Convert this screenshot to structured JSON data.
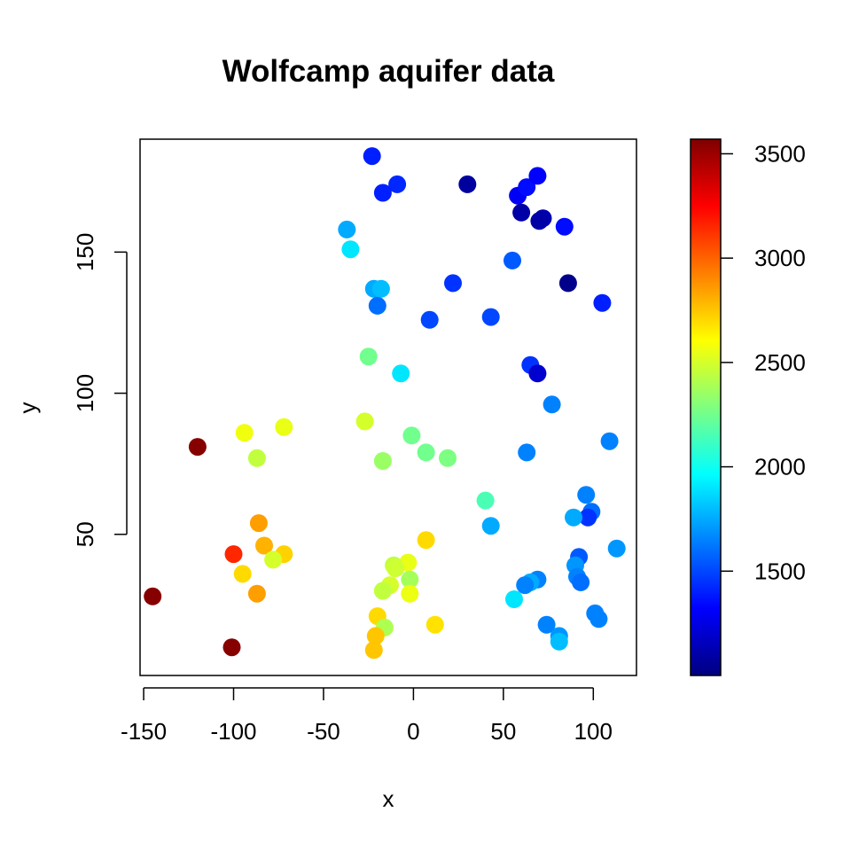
{
  "chart_data": {
    "type": "scatter",
    "title": "Wolfcamp aquifer data",
    "xlabel": "x",
    "ylabel": "y",
    "xlim": [
      -152,
      124
    ],
    "ylim": [
      0,
      190
    ],
    "xticks": [
      -150,
      -100,
      -50,
      0,
      50,
      100
    ],
    "xtick_labels": [
      "-150",
      "-100",
      "-50",
      "0",
      "50",
      "100"
    ],
    "yticks": [
      50,
      100,
      150
    ],
    "ytick_labels": [
      "50",
      "100",
      "150"
    ],
    "grid": false,
    "colorbar": {
      "palette": "jet",
      "range": [
        1000,
        3570
      ],
      "ticks": [
        1500,
        2000,
        2500,
        3000,
        3500
      ],
      "tick_labels": [
        "1500",
        "2000",
        "2500",
        "3000",
        "3500"
      ],
      "colors": [
        "#00007F",
        "#0000FF",
        "#007FFF",
        "#00FFFF",
        "#7FFF7F",
        "#FFFF00",
        "#FF7F00",
        "#FF0000",
        "#7F0000"
      ]
    },
    "points": [
      {
        "x": -23,
        "y": 184,
        "value": 1400
      },
      {
        "x": -9,
        "y": 174,
        "value": 1420
      },
      {
        "x": -17,
        "y": 171,
        "value": 1400
      },
      {
        "x": 30,
        "y": 174,
        "value": 1080
      },
      {
        "x": 58,
        "y": 170,
        "value": 1300
      },
      {
        "x": 63,
        "y": 173,
        "value": 1350
      },
      {
        "x": 69,
        "y": 177,
        "value": 1320
      },
      {
        "x": 60,
        "y": 164,
        "value": 1100
      },
      {
        "x": 72,
        "y": 162,
        "value": 1120
      },
      {
        "x": 70,
        "y": 161,
        "value": 1100
      },
      {
        "x": 84,
        "y": 159,
        "value": 1350
      },
      {
        "x": -37,
        "y": 158,
        "value": 1750
      },
      {
        "x": -35,
        "y": 151,
        "value": 1900
      },
      {
        "x": 55,
        "y": 147,
        "value": 1550
      },
      {
        "x": 86,
        "y": 139,
        "value": 1030
      },
      {
        "x": 22,
        "y": 139,
        "value": 1450
      },
      {
        "x": -22,
        "y": 137,
        "value": 1750
      },
      {
        "x": -18,
        "y": 137,
        "value": 1800
      },
      {
        "x": -20,
        "y": 131,
        "value": 1600
      },
      {
        "x": 105,
        "y": 132,
        "value": 1400
      },
      {
        "x": 9,
        "y": 126,
        "value": 1500
      },
      {
        "x": 43,
        "y": 127,
        "value": 1500
      },
      {
        "x": -25,
        "y": 113,
        "value": 2250
      },
      {
        "x": 65,
        "y": 110,
        "value": 1450
      },
      {
        "x": 69,
        "y": 107,
        "value": 1200
      },
      {
        "x": -7,
        "y": 107,
        "value": 1900
      },
      {
        "x": 77,
        "y": 96,
        "value": 1650
      },
      {
        "x": -27,
        "y": 90,
        "value": 2500
      },
      {
        "x": -72,
        "y": 88,
        "value": 2550
      },
      {
        "x": -94,
        "y": 86,
        "value": 2570
      },
      {
        "x": -1,
        "y": 85,
        "value": 2250
      },
      {
        "x": -120,
        "y": 81,
        "value": 3550
      },
      {
        "x": 7,
        "y": 79,
        "value": 2250
      },
      {
        "x": 19,
        "y": 77,
        "value": 2280
      },
      {
        "x": -87,
        "y": 77,
        "value": 2450
      },
      {
        "x": -17,
        "y": 76,
        "value": 2350
      },
      {
        "x": 63,
        "y": 79,
        "value": 1650
      },
      {
        "x": 109,
        "y": 83,
        "value": 1650
      },
      {
        "x": 96,
        "y": 64,
        "value": 1650
      },
      {
        "x": 40,
        "y": 62,
        "value": 2150
      },
      {
        "x": 99,
        "y": 58,
        "value": 1600
      },
      {
        "x": 97,
        "y": 56,
        "value": 1450
      },
      {
        "x": 89,
        "y": 56,
        "value": 1750
      },
      {
        "x": 43,
        "y": 53,
        "value": 1750
      },
      {
        "x": -86,
        "y": 54,
        "value": 2850
      },
      {
        "x": 7,
        "y": 48,
        "value": 2700
      },
      {
        "x": 113,
        "y": 45,
        "value": 1700
      },
      {
        "x": -83,
        "y": 46,
        "value": 2800
      },
      {
        "x": -72,
        "y": 43,
        "value": 2720
      },
      {
        "x": -100,
        "y": 43,
        "value": 3150
      },
      {
        "x": 92,
        "y": 42,
        "value": 1550
      },
      {
        "x": -78,
        "y": 41,
        "value": 2500
      },
      {
        "x": -3,
        "y": 40,
        "value": 2550
      },
      {
        "x": -11,
        "y": 39,
        "value": 2450
      },
      {
        "x": -10,
        "y": 38,
        "value": 2480
      },
      {
        "x": 90,
        "y": 39,
        "value": 1700
      },
      {
        "x": -95,
        "y": 36,
        "value": 2700
      },
      {
        "x": 91,
        "y": 35,
        "value": 1650
      },
      {
        "x": 93,
        "y": 33,
        "value": 1600
      },
      {
        "x": -2,
        "y": 34,
        "value": 2380
      },
      {
        "x": 69,
        "y": 34,
        "value": 1650
      },
      {
        "x": 65,
        "y": 33,
        "value": 1750
      },
      {
        "x": 62,
        "y": 32,
        "value": 1650
      },
      {
        "x": -13,
        "y": 32,
        "value": 2500
      },
      {
        "x": -17,
        "y": 30,
        "value": 2450
      },
      {
        "x": -2,
        "y": 29,
        "value": 2560
      },
      {
        "x": -87,
        "y": 29,
        "value": 2850
      },
      {
        "x": -145,
        "y": 28,
        "value": 3550
      },
      {
        "x": 56,
        "y": 27,
        "value": 1900
      },
      {
        "x": 101,
        "y": 22,
        "value": 1650
      },
      {
        "x": 103,
        "y": 20,
        "value": 1650
      },
      {
        "x": -20,
        "y": 21,
        "value": 2700
      },
      {
        "x": 12,
        "y": 18,
        "value": 2680
      },
      {
        "x": 74,
        "y": 18,
        "value": 1650
      },
      {
        "x": -16,
        "y": 17,
        "value": 2400
      },
      {
        "x": -21,
        "y": 14,
        "value": 2750
      },
      {
        "x": 81,
        "y": 14,
        "value": 1700
      },
      {
        "x": 81,
        "y": 12,
        "value": 1800
      },
      {
        "x": -101,
        "y": 10,
        "value": 3550
      },
      {
        "x": -22,
        "y": 9,
        "value": 2750
      }
    ]
  }
}
